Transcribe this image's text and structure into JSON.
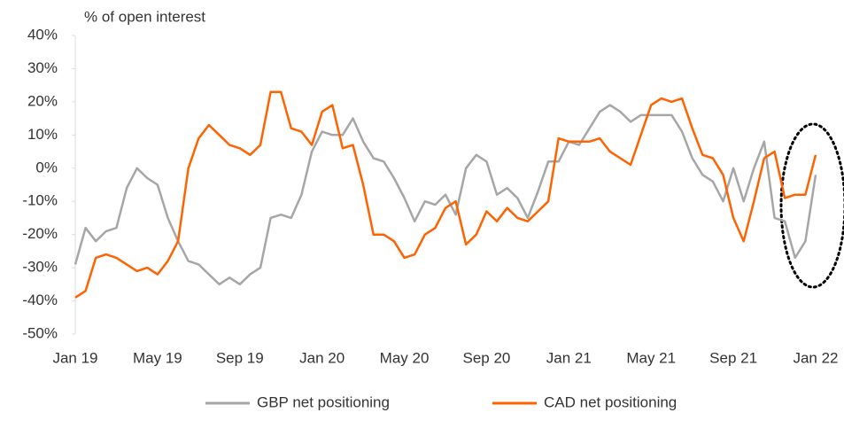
{
  "chart_data": {
    "type": "line",
    "y_label": "% of open interest",
    "categories": [
      "Jan 19",
      null,
      null,
      null,
      null,
      null,
      null,
      null,
      "May 19",
      null,
      null,
      null,
      null,
      null,
      null,
      null,
      "Sep 19",
      null,
      null,
      null,
      null,
      null,
      null,
      null,
      "Jan 20",
      null,
      null,
      null,
      null,
      null,
      null,
      null,
      "May 20",
      null,
      null,
      null,
      null,
      null,
      null,
      null,
      "Sep 20",
      null,
      null,
      null,
      null,
      null,
      null,
      null,
      "Jan 21",
      null,
      null,
      null,
      null,
      null,
      null,
      null,
      "May 21",
      null,
      null,
      null,
      null,
      null,
      null,
      null,
      "Sep 21",
      null,
      null,
      null,
      null,
      null,
      null,
      null,
      "Jan 22"
    ],
    "series": [
      {
        "name": "GBP net positioning",
        "color": "#a6a6a6",
        "values": [
          -29,
          -18,
          -22,
          -19,
          -18,
          -6,
          0,
          -3,
          -5,
          -15,
          -22,
          -28,
          -29,
          -32,
          -35,
          -33,
          -35,
          -32,
          -30,
          -15,
          -14,
          -15,
          -8,
          5,
          11,
          10,
          10,
          15,
          8,
          3,
          2,
          -3,
          -9,
          -16,
          -10,
          -11,
          -8,
          -14,
          0,
          4,
          2,
          -8,
          -6,
          -9,
          -15,
          -7,
          2,
          2,
          8,
          7,
          12,
          17,
          19,
          17,
          14,
          16,
          16,
          16,
          16,
          11,
          3,
          -2,
          -4,
          -10,
          0,
          -10,
          0,
          8,
          -15,
          -16,
          -27,
          -22,
          -2
        ]
      },
      {
        "name": "CAD net positioning",
        "color": "#ff6200",
        "values": [
          -39,
          -37,
          -27,
          -26,
          -27,
          -29,
          -31,
          -30,
          -32,
          -28,
          -22,
          0,
          9,
          13,
          10,
          7,
          6,
          4,
          7,
          23,
          23,
          12,
          11,
          7,
          17,
          19,
          6,
          7,
          -5,
          -20,
          -20,
          -22,
          -27,
          -26,
          -20,
          -18,
          -12,
          -10,
          -23,
          -20,
          -13,
          -16,
          -12,
          -15,
          -16,
          -13,
          -10,
          9,
          8,
          8,
          8,
          9,
          5,
          3,
          1,
          10,
          19,
          21,
          20,
          21,
          12,
          4,
          3,
          -2,
          -15,
          -22,
          -10,
          3,
          5,
          -9,
          -8,
          -8,
          4
        ]
      }
    ],
    "ylim": [
      -50,
      40
    ],
    "yticks": [
      {
        "value": -50,
        "label": "-50%"
      },
      {
        "value": -40,
        "label": "-40%"
      },
      {
        "value": -30,
        "label": "-30%"
      },
      {
        "value": -20,
        "label": "-20%"
      },
      {
        "value": -10,
        "label": "-10%"
      },
      {
        "value": 0,
        "label": "0%"
      },
      {
        "value": 10,
        "label": "10%"
      },
      {
        "value": 20,
        "label": "20%"
      },
      {
        "value": 30,
        "label": "30%"
      },
      {
        "value": 40,
        "label": "40%"
      }
    ],
    "grid": false,
    "legend": "bottom"
  }
}
